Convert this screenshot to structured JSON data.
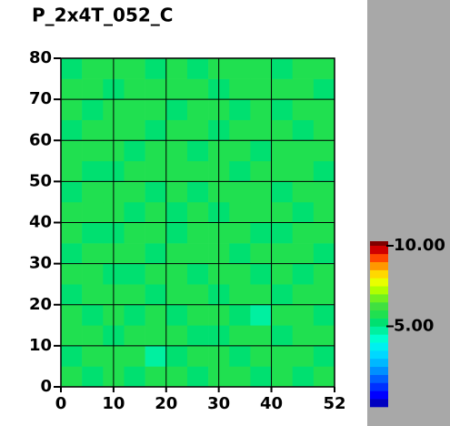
{
  "chart_data": {
    "type": "heatmap",
    "title": "P_2x4T_052_C",
    "xlim": [
      0,
      52
    ],
    "ylim": [
      0,
      80
    ],
    "xticks": [
      0,
      10,
      20,
      30,
      40,
      52
    ],
    "yticks": [
      0,
      10,
      20,
      30,
      40,
      50,
      60,
      70,
      80
    ],
    "grid": true,
    "clim": [
      0,
      10
    ],
    "cticks": [
      {
        "value": 10,
        "label": "10.00"
      },
      {
        "value": 5,
        "label": "5.00"
      }
    ],
    "colormap": [
      "#0000c0",
      "#0000ff",
      "#0030ff",
      "#0060ff",
      "#0090ff",
      "#00b8ff",
      "#00d8ff",
      "#00f0f0",
      "#00ffd0",
      "#00f0a0",
      "#00e070",
      "#20e050",
      "#40e040",
      "#70f020",
      "#b0ff00",
      "#e8ff00",
      "#ffd800",
      "#ff9800",
      "#ff4800",
      "#d00000"
    ],
    "z": [
      [
        5.6,
        5.4,
        5.8,
        5.2,
        5.5,
        5.7,
        5.3,
        5.6,
        5.9,
        5.4,
        5.5,
        5.2,
        5.7
      ],
      [
        5.3,
        5.7,
        5.5,
        5.6,
        4.9,
        5.4,
        5.8,
        5.5,
        5.3,
        5.6,
        5.7,
        5.5,
        5.4
      ],
      [
        5.5,
        5.6,
        5.3,
        5.8,
        5.6,
        5.5,
        5.4,
        5.2,
        5.7,
        5.5,
        5.3,
        5.8,
        5.6
      ],
      [
        5.8,
        5.2,
        5.6,
        5.4,
        5.7,
        5.3,
        5.6,
        5.8,
        5.4,
        4.9,
        5.6,
        5.5,
        5.3
      ],
      [
        5.4,
        5.5,
        5.7,
        5.5,
        5.3,
        5.8,
        5.5,
        5.4,
        5.6,
        5.7,
        5.4,
        5.6,
        5.5
      ],
      [
        5.6,
        5.8,
        5.4,
        5.3,
        5.6,
        5.5,
        5.2,
        5.7,
        5.5,
        5.3,
        5.8,
        5.4,
        5.7
      ],
      [
        5.3,
        5.5,
        5.6,
        5.7,
        5.4,
        5.6,
        5.7,
        5.5,
        5.3,
        5.6,
        5.5,
        5.7,
        5.4
      ],
      [
        5.7,
        5.4,
        5.2,
        5.6,
        5.8,
        5.4,
        5.5,
        5.6,
        5.8,
        5.4,
        5.3,
        5.6,
        5.5
      ],
      [
        5.5,
        5.6,
        5.8,
        5.4,
        5.5,
        5.3,
        5.6,
        5.4,
        5.5,
        5.7,
        5.6,
        5.3,
        5.8
      ],
      [
        5.4,
        5.7,
        5.5,
        5.6,
        5.3,
        5.7,
        5.4,
        5.8,
        5.6,
        5.5,
        5.4,
        5.7,
        5.5
      ],
      [
        5.6,
        5.3,
        5.4,
        5.8,
        5.6,
        5.5,
        5.8,
        5.5,
        5.3,
        5.6,
        5.7,
        5.5,
        5.4
      ],
      [
        5.8,
        5.5,
        5.6,
        5.3,
        5.5,
        5.6,
        5.4,
        5.7,
        5.5,
        5.4,
        5.6,
        5.8,
        5.6
      ],
      [
        5.3,
        5.6,
        5.7,
        5.5,
        5.4,
        5.8,
        5.5,
        5.3,
        5.7,
        5.6,
        5.5,
        5.4,
        5.7
      ],
      [
        5.5,
        5.4,
        5.6,
        5.7,
        5.6,
        5.4,
        5.7,
        5.6,
        5.4,
        5.8,
        5.3,
        5.6,
        5.5
      ],
      [
        5.7,
        5.6,
        5.3,
        5.5,
        5.8,
        5.5,
        5.6,
        5.4,
        5.6,
        5.5,
        5.7,
        5.5,
        5.3
      ],
      [
        5.4,
        5.5,
        5.7,
        5.6,
        5.4,
        5.6,
        5.3,
        5.7,
        5.5,
        5.6,
        5.4,
        5.7,
        5.6
      ]
    ]
  }
}
